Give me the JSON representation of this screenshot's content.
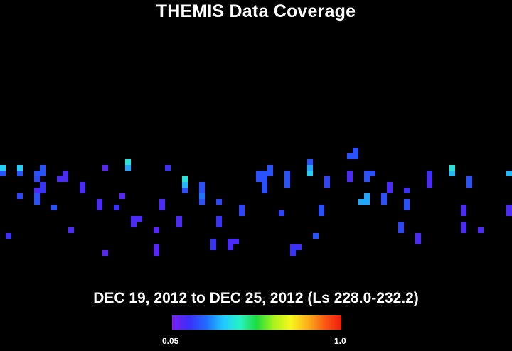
{
  "chart_data": {
    "type": "heatmap",
    "title": "THEMIS Data Coverage",
    "subtitle": "DEC 19, 2012 to DEC 25, 2012 (Ls 228.0-232.2)",
    "colorbar": {
      "min_label": "0.05",
      "max_label": "1.0",
      "min": 0.05,
      "max": 1.0,
      "colors": [
        "#7a1ff5",
        "#3a2ff7",
        "#1f6bff",
        "#20c8ff",
        "#27f3c4",
        "#1fdc3c",
        "#a8f219",
        "#f9f61c",
        "#fbb11b",
        "#fb5a14",
        "#f51b0c"
      ]
    },
    "grid": {
      "cols": 90,
      "rows": 50
    },
    "cells": [
      {
        "c": 0,
        "r": 29,
        "v": 0.35
      },
      {
        "c": 0,
        "r": 30,
        "v": 0.2
      },
      {
        "c": 1,
        "r": 41,
        "v": 0.15
      },
      {
        "c": 3,
        "r": 29,
        "v": 0.35
      },
      {
        "c": 3,
        "r": 30,
        "v": 0.2
      },
      {
        "c": 3,
        "r": 34,
        "v": 0.18
      },
      {
        "c": 6,
        "r": 30,
        "v": 0.2
      },
      {
        "c": 6,
        "r": 31,
        "v": 0.18
      },
      {
        "c": 6,
        "r": 33,
        "v": 0.12
      },
      {
        "c": 6,
        "r": 34,
        "v": 0.2
      },
      {
        "c": 6,
        "r": 35,
        "v": 0.2
      },
      {
        "c": 7,
        "r": 29,
        "v": 0.2
      },
      {
        "c": 7,
        "r": 30,
        "v": 0.2
      },
      {
        "c": 7,
        "r": 32,
        "v": 0.15
      },
      {
        "c": 7,
        "r": 33,
        "v": 0.15
      },
      {
        "c": 9,
        "r": 36,
        "v": 0.2
      },
      {
        "c": 10,
        "r": 31,
        "v": 0.12
      },
      {
        "c": 11,
        "r": 30,
        "v": 0.12
      },
      {
        "c": 11,
        "r": 31,
        "v": 0.12
      },
      {
        "c": 12,
        "r": 40,
        "v": 0.12
      },
      {
        "c": 14,
        "r": 32,
        "v": 0.12
      },
      {
        "c": 14,
        "r": 33,
        "v": 0.12
      },
      {
        "c": 17,
        "r": 35,
        "v": 0.12
      },
      {
        "c": 17,
        "r": 36,
        "v": 0.12
      },
      {
        "c": 18,
        "r": 29,
        "v": 0.1
      },
      {
        "c": 18,
        "r": 44,
        "v": 0.1
      },
      {
        "c": 20,
        "r": 36,
        "v": 0.15
      },
      {
        "c": 21,
        "r": 34,
        "v": 0.1
      },
      {
        "c": 22,
        "r": 28,
        "v": 0.4
      },
      {
        "c": 22,
        "r": 29,
        "v": 0.3
      },
      {
        "c": 23,
        "r": 38,
        "v": 0.12
      },
      {
        "c": 23,
        "r": 39,
        "v": 0.12
      },
      {
        "c": 24,
        "r": 38,
        "v": 0.12
      },
      {
        "c": 27,
        "r": 40,
        "v": 0.1
      },
      {
        "c": 27,
        "r": 43,
        "v": 0.1
      },
      {
        "c": 27,
        "r": 44,
        "v": 0.1
      },
      {
        "c": 28,
        "r": 35,
        "v": 0.12
      },
      {
        "c": 28,
        "r": 36,
        "v": 0.12
      },
      {
        "c": 29,
        "r": 29,
        "v": 0.15
      },
      {
        "c": 31,
        "r": 38,
        "v": 0.12
      },
      {
        "c": 31,
        "r": 39,
        "v": 0.12
      },
      {
        "c": 32,
        "r": 31,
        "v": 0.4
      },
      {
        "c": 32,
        "r": 32,
        "v": 0.32
      },
      {
        "c": 32,
        "r": 33,
        "v": 0.2
      },
      {
        "c": 35,
        "r": 32,
        "v": 0.2
      },
      {
        "c": 35,
        "r": 33,
        "v": 0.2
      },
      {
        "c": 35,
        "r": 34,
        "v": 0.25
      },
      {
        "c": 35,
        "r": 35,
        "v": 0.2
      },
      {
        "c": 37,
        "r": 42,
        "v": 0.15
      },
      {
        "c": 37,
        "r": 43,
        "v": 0.15
      },
      {
        "c": 38,
        "r": 35,
        "v": 0.18
      },
      {
        "c": 38,
        "r": 38,
        "v": 0.15
      },
      {
        "c": 38,
        "r": 39,
        "v": 0.15
      },
      {
        "c": 40,
        "r": 42,
        "v": 0.12
      },
      {
        "c": 40,
        "r": 43,
        "v": 0.12
      },
      {
        "c": 41,
        "r": 42,
        "v": 0.12
      },
      {
        "c": 42,
        "r": 36,
        "v": 0.18
      },
      {
        "c": 42,
        "r": 37,
        "v": 0.18
      },
      {
        "c": 45,
        "r": 30,
        "v": 0.2
      },
      {
        "c": 45,
        "r": 31,
        "v": 0.2
      },
      {
        "c": 46,
        "r": 30,
        "v": 0.2
      },
      {
        "c": 46,
        "r": 31,
        "v": 0.2
      },
      {
        "c": 46,
        "r": 32,
        "v": 0.2
      },
      {
        "c": 46,
        "r": 33,
        "v": 0.2
      },
      {
        "c": 47,
        "r": 29,
        "v": 0.2
      },
      {
        "c": 47,
        "r": 30,
        "v": 0.2
      },
      {
        "c": 49,
        "r": 37,
        "v": 0.18
      },
      {
        "c": 50,
        "r": 30,
        "v": 0.2
      },
      {
        "c": 50,
        "r": 31,
        "v": 0.2
      },
      {
        "c": 50,
        "r": 32,
        "v": 0.2
      },
      {
        "c": 51,
        "r": 43,
        "v": 0.15
      },
      {
        "c": 51,
        "r": 44,
        "v": 0.15
      },
      {
        "c": 52,
        "r": 43,
        "v": 0.15
      },
      {
        "c": 54,
        "r": 28,
        "v": 0.2
      },
      {
        "c": 54,
        "r": 29,
        "v": 0.3
      },
      {
        "c": 54,
        "r": 30,
        "v": 0.35
      },
      {
        "c": 55,
        "r": 41,
        "v": 0.2
      },
      {
        "c": 56,
        "r": 36,
        "v": 0.2
      },
      {
        "c": 56,
        "r": 37,
        "v": 0.2
      },
      {
        "c": 57,
        "r": 31,
        "v": 0.18
      },
      {
        "c": 57,
        "r": 32,
        "v": 0.18
      },
      {
        "c": 61,
        "r": 27,
        "v": 0.2
      },
      {
        "c": 61,
        "r": 30,
        "v": 0.12
      },
      {
        "c": 61,
        "r": 31,
        "v": 0.12
      },
      {
        "c": 62,
        "r": 27,
        "v": 0.2
      },
      {
        "c": 62,
        "r": 26,
        "v": 0.2
      },
      {
        "c": 63,
        "r": 35,
        "v": 0.3
      },
      {
        "c": 64,
        "r": 30,
        "v": 0.2
      },
      {
        "c": 64,
        "r": 31,
        "v": 0.2
      },
      {
        "c": 64,
        "r": 34,
        "v": 0.3
      },
      {
        "c": 64,
        "r": 35,
        "v": 0.3
      },
      {
        "c": 65,
        "r": 30,
        "v": 0.2
      },
      {
        "c": 67,
        "r": 34,
        "v": 0.2
      },
      {
        "c": 67,
        "r": 35,
        "v": 0.2
      },
      {
        "c": 68,
        "r": 32,
        "v": 0.12
      },
      {
        "c": 68,
        "r": 33,
        "v": 0.12
      },
      {
        "c": 70,
        "r": 39,
        "v": 0.18
      },
      {
        "c": 70,
        "r": 40,
        "v": 0.18
      },
      {
        "c": 71,
        "r": 33,
        "v": 0.15
      },
      {
        "c": 71,
        "r": 35,
        "v": 0.2
      },
      {
        "c": 71,
        "r": 36,
        "v": 0.2
      },
      {
        "c": 73,
        "r": 41,
        "v": 0.12
      },
      {
        "c": 73,
        "r": 42,
        "v": 0.12
      },
      {
        "c": 75,
        "r": 30,
        "v": 0.15
      },
      {
        "c": 75,
        "r": 31,
        "v": 0.12
      },
      {
        "c": 75,
        "r": 32,
        "v": 0.12
      },
      {
        "c": 79,
        "r": 29,
        "v": 0.4
      },
      {
        "c": 79,
        "r": 30,
        "v": 0.32
      },
      {
        "c": 81,
        "r": 36,
        "v": 0.12
      },
      {
        "c": 81,
        "r": 37,
        "v": 0.12
      },
      {
        "c": 81,
        "r": 39,
        "v": 0.12
      },
      {
        "c": 81,
        "r": 40,
        "v": 0.12
      },
      {
        "c": 82,
        "r": 31,
        "v": 0.2
      },
      {
        "c": 82,
        "r": 32,
        "v": 0.2
      },
      {
        "c": 84,
        "r": 40,
        "v": 0.12
      },
      {
        "c": 89,
        "r": 30,
        "v": 0.32
      },
      {
        "c": 89,
        "r": 36,
        "v": 0.12
      },
      {
        "c": 89,
        "r": 37,
        "v": 0.12
      }
    ]
  }
}
